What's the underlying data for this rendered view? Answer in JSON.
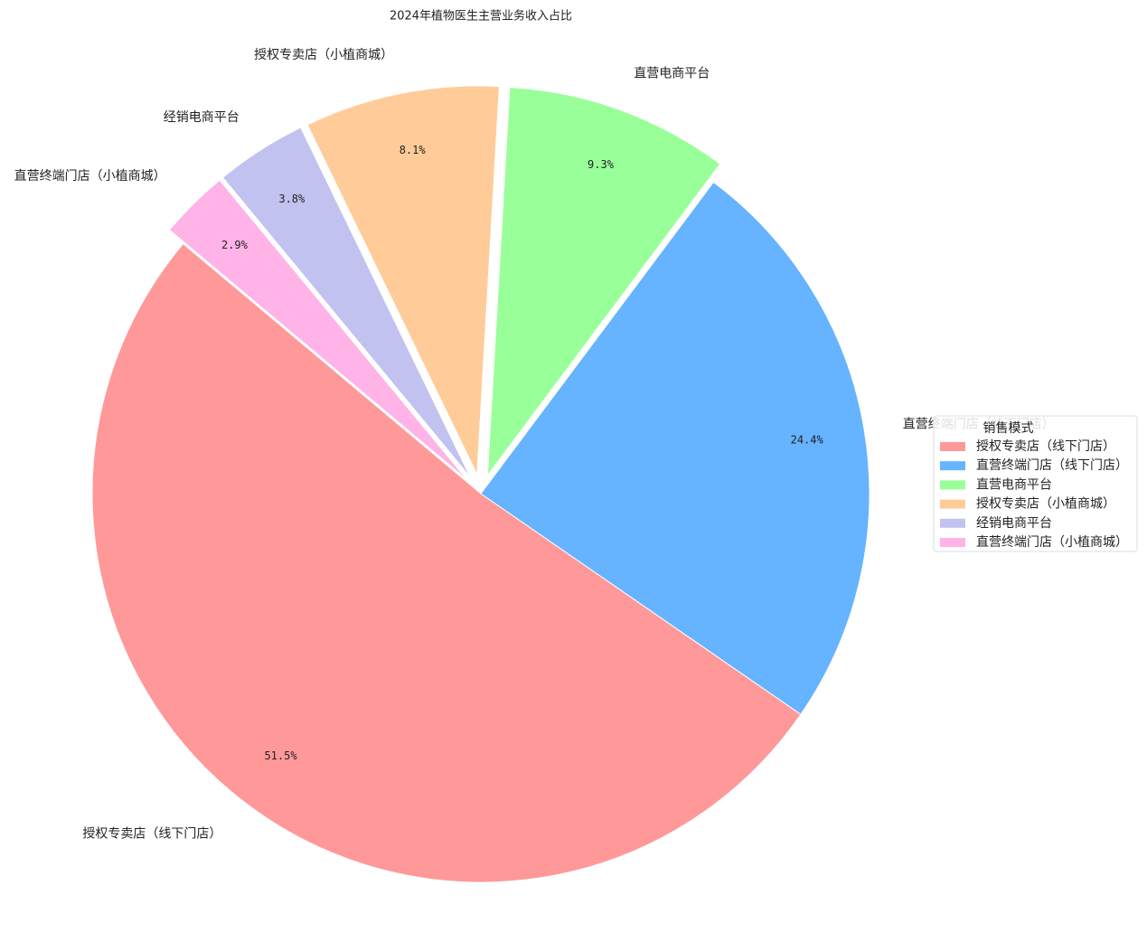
{
  "chart_data": {
    "type": "pie",
    "title": "2024年植物医生主营业务收入占比",
    "categories": [
      "授权专卖店（线下门店）",
      "直营终端门店（线下门店）",
      "直营电商平台",
      "授权专卖店（小植商城）",
      "经销电商平台",
      "直营终端门店（小植商城）"
    ],
    "values": [
      51.5,
      24.4,
      9.3,
      8.1,
      3.8,
      2.9
    ],
    "value_labels": [
      "51.5%",
      "24.4%",
      "9.3%",
      "8.1%",
      "3.8%",
      "2.9%"
    ],
    "colors": [
      "#ff9999",
      "#66b3ff",
      "#99ff99",
      "#ffcc99",
      "#c2c2f0",
      "#ffb3e6"
    ],
    "explode": [
      0,
      0,
      0.05,
      0.05,
      0.05,
      0.05
    ],
    "legend_title": "销售模式",
    "legend": "right"
  }
}
